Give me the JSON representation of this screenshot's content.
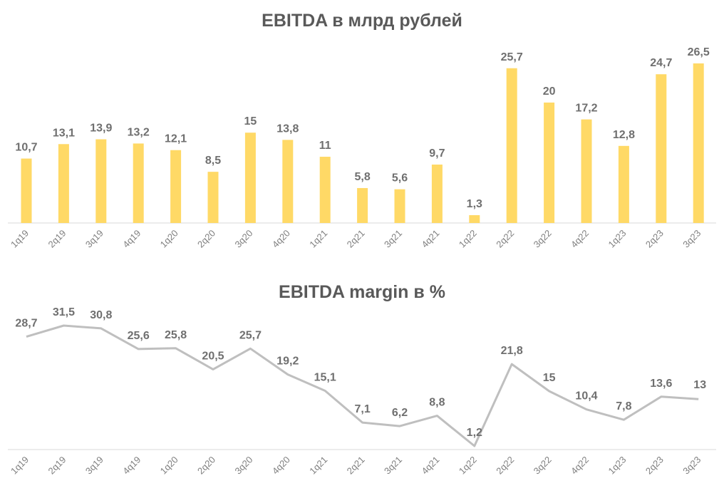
{
  "chart_data": [
    {
      "type": "bar",
      "title": "EBITDA в млрд рублей",
      "categories": [
        "1q19",
        "2q19",
        "3q19",
        "4q19",
        "1q20",
        "2q20",
        "3q20",
        "4q20",
        "1q21",
        "2q21",
        "3q21",
        "4q21",
        "1q22",
        "2q22",
        "3q22",
        "4q22",
        "1q23",
        "2q23",
        "3q23"
      ],
      "values": [
        10.7,
        13.1,
        13.9,
        13.2,
        12.1,
        8.5,
        15,
        13.8,
        11,
        5.8,
        5.6,
        9.7,
        1.3,
        25.7,
        20,
        17.2,
        12.8,
        24.7,
        26.5
      ],
      "data_labels": [
        "10,7",
        "13,1",
        "13,9",
        "13,2",
        "12,1",
        "8,5",
        "15",
        "13,8",
        "11",
        "5,8",
        "5,6",
        "9,7",
        "1,3",
        "25,7",
        "20",
        "17,2",
        "12,8",
        "24,7",
        "26,5"
      ],
      "ylim": [
        0,
        28
      ],
      "grid": false,
      "color": "#FFD966"
    },
    {
      "type": "line",
      "title": "EBITDA margin в %",
      "categories": [
        "1q19",
        "2q19",
        "3q19",
        "4q19",
        "1q20",
        "2q20",
        "3q20",
        "4q20",
        "1q21",
        "2q21",
        "3q21",
        "4q21",
        "1q22",
        "2q22",
        "3q22",
        "4q22",
        "1q23",
        "2q23",
        "3q23"
      ],
      "values": [
        28.7,
        31.5,
        30.8,
        25.6,
        25.8,
        20.5,
        25.7,
        19.2,
        15.1,
        7.1,
        6.2,
        8.8,
        1.2,
        21.8,
        15,
        10.4,
        7.8,
        13.6,
        13
      ],
      "data_labels": [
        "28,7",
        "31,5",
        "30,8",
        "25,6",
        "25,8",
        "20,5",
        "25,7",
        "19,2",
        "15,1",
        "7,1",
        "6,2",
        "8,8",
        "1,2",
        "21,8",
        "15",
        "10,4",
        "7,8",
        "13,6",
        "13"
      ],
      "ylim": [
        0,
        32
      ],
      "grid": false,
      "color": "#BFBFBF"
    }
  ]
}
